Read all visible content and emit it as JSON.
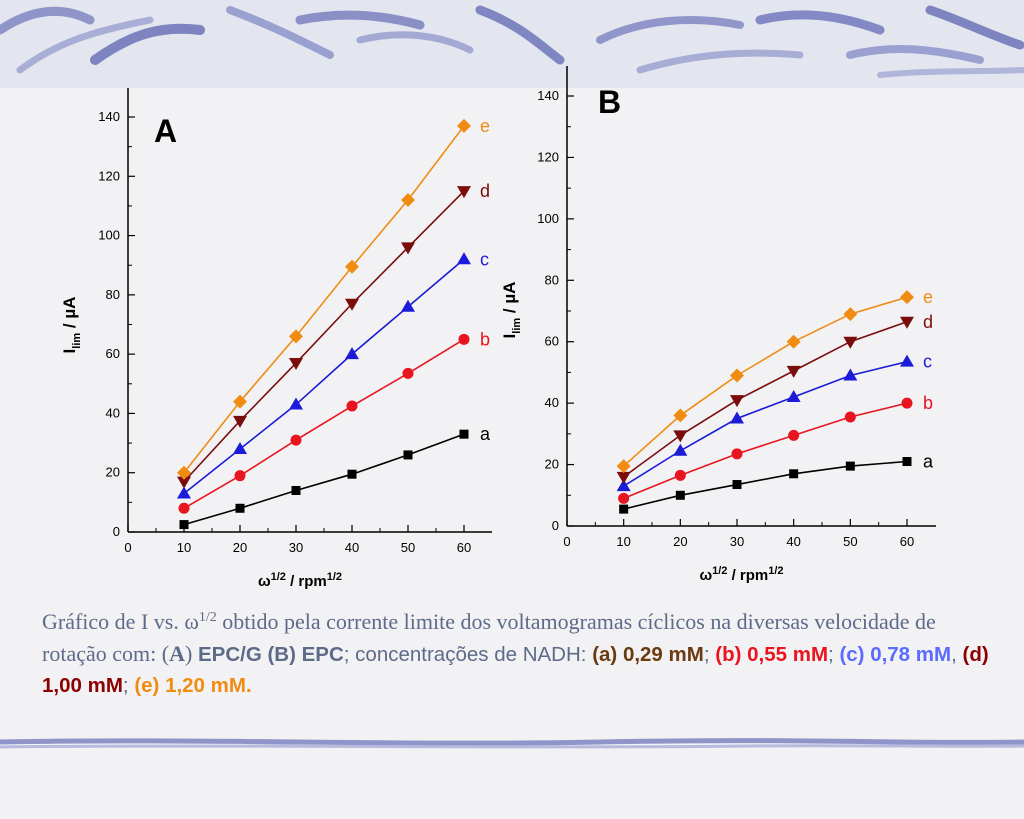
{
  "colors": {
    "a": "#000000",
    "b": "#e8141e",
    "c": "#1b1bd8",
    "d": "#7a0c0c",
    "e": "#f08c12",
    "caption": "#5d6a88",
    "caption_d": "#8b0000",
    "caption_a": "#6b3a10",
    "caption_c": "#5b6bff"
  },
  "chart_data": [
    {
      "type": "line",
      "panel_label": "A",
      "xlabel": "ω1/2 / rpm1/2",
      "ylabel": "Ilim / µA",
      "xlim": [
        0,
        65
      ],
      "ylim": [
        0,
        150
      ],
      "x_ticks": [
        "0",
        "10",
        "20",
        "30",
        "40",
        "50",
        "60"
      ],
      "y_ticks": [
        "0",
        "20",
        "40",
        "60",
        "80",
        "100",
        "120",
        "140"
      ],
      "x": [
        10,
        20,
        30,
        40,
        50,
        60
      ],
      "series": [
        {
          "name": "a",
          "marker": "square",
          "values": [
            2.5,
            8,
            14,
            19.5,
            26,
            33
          ]
        },
        {
          "name": "b",
          "marker": "circle",
          "values": [
            8,
            19,
            31,
            42.5,
            53.5,
            65
          ]
        },
        {
          "name": "c",
          "marker": "triangle-up",
          "values": [
            13,
            28,
            43,
            60,
            76,
            92
          ]
        },
        {
          "name": "d",
          "marker": "triangle-down",
          "values": [
            17,
            37.5,
            57,
            77,
            96,
            115
          ]
        },
        {
          "name": "e",
          "marker": "diamond",
          "values": [
            20,
            44,
            66,
            89.5,
            112,
            137
          ]
        }
      ]
    },
    {
      "type": "line",
      "panel_label": "B",
      "xlabel": "ω1/2 / rpm1/2",
      "ylabel": "Ilim / µA",
      "xlim": [
        0,
        65
      ],
      "ylim": [
        0,
        150
      ],
      "x_ticks": [
        "0",
        "10",
        "20",
        "30",
        "40",
        "50",
        "60"
      ],
      "y_ticks": [
        "0",
        "20",
        "40",
        "60",
        "80",
        "100",
        "120",
        "140"
      ],
      "x": [
        10,
        20,
        30,
        40,
        50,
        60
      ],
      "series": [
        {
          "name": "a",
          "marker": "square",
          "values": [
            5.5,
            10,
            13.5,
            17,
            19.5,
            21
          ]
        },
        {
          "name": "b",
          "marker": "circle",
          "values": [
            9,
            16.5,
            23.5,
            29.5,
            35.5,
            40
          ]
        },
        {
          "name": "c",
          "marker": "triangle-up",
          "values": [
            13,
            24.5,
            35,
            42,
            49,
            53.5
          ]
        },
        {
          "name": "d",
          "marker": "triangle-down",
          "values": [
            16,
            29.5,
            41,
            50.5,
            60,
            66.5
          ]
        },
        {
          "name": "e",
          "marker": "diamond",
          "values": [
            19.5,
            36,
            49,
            60,
            69,
            74.5
          ]
        }
      ]
    }
  ],
  "caption": {
    "p1": "Gráfico de I vs. ω",
    "p1_sup": "1/2",
    "p2": " obtido pela corrente limite dos voltamogramas cíclicos na diversas velocidade de rotação com: (",
    "p2_A": "A",
    "p2_close": ")",
    "p3": " EPC/G",
    "p4": "  (B) EPC",
    "p5": "; concentrações de NADH:  ",
    "a_label": "(a) 0,29 mM",
    "sep1": "; ",
    "b_label": "(b) 0,55 mM",
    "sep2": "; ",
    "c_label": "(c) 0,78 mM",
    "sep3": ", ",
    "d_label": "(d) 1,00 mM",
    "sep4": "; ",
    "e_label": "(e) 1,20 mM."
  }
}
